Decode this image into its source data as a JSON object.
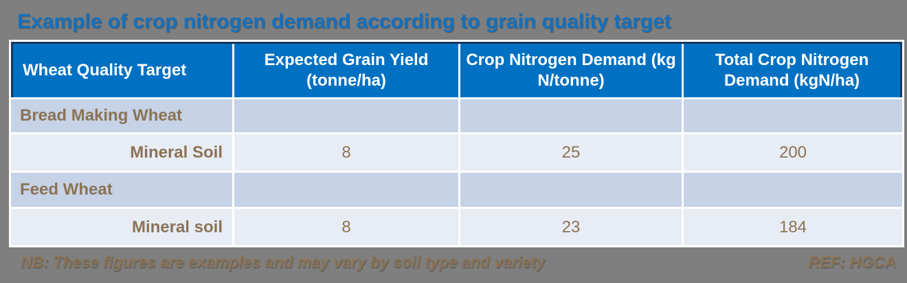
{
  "theme": {
    "background_color": "#7F7F7F",
    "title_color": "#1470BD",
    "header_bg": "#0071C2",
    "header_border": "#17375D",
    "header_text_color": "#FFFFFF",
    "category_row_bg": "#C6D2E6",
    "data_row_bg": "#E8ECF5",
    "body_text_color": "#8A7355",
    "separator_color": "#FFFFFF"
  },
  "page": {
    "title": "Example of crop nitrogen demand according to grain quality target"
  },
  "table": {
    "columns": [
      "Wheat Quality Target",
      "Expected Grain Yield (tonne/ha)",
      "Crop Nitrogen Demand (kg N/tonne)",
      "Total Crop Nitrogen Demand (kgN/ha)"
    ],
    "rows": [
      {
        "type": "category",
        "label": "Bread Making Wheat",
        "values": [
          "",
          "",
          ""
        ]
      },
      {
        "type": "data",
        "label": "Mineral Soil",
        "values": [
          "8",
          "25",
          "200"
        ]
      },
      {
        "type": "category",
        "label": "Feed Wheat",
        "values": [
          "",
          "",
          ""
        ]
      },
      {
        "type": "data",
        "label": "Mineral soil",
        "values": [
          "8",
          "23",
          "184"
        ]
      }
    ]
  },
  "footer": {
    "note": "NB: These figures are examples and may vary by soil type and variety",
    "reference": "REF: HGCA"
  }
}
